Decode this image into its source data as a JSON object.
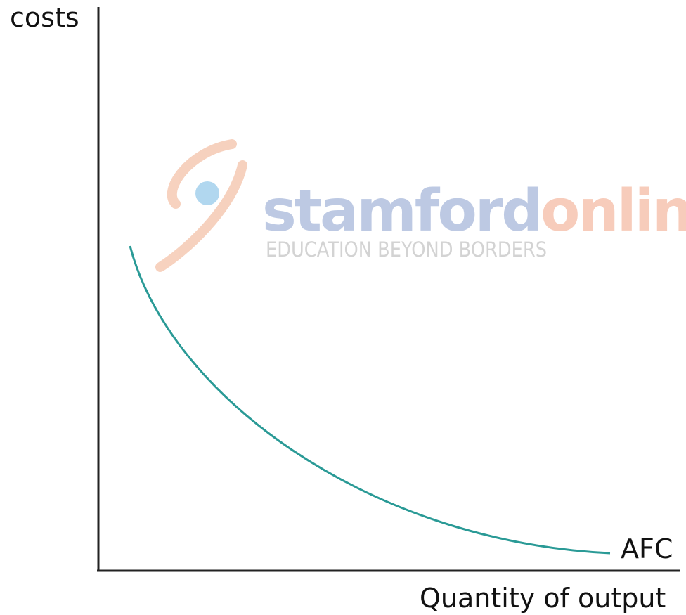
{
  "y_axis_label": "costs",
  "x_axis_label": "Quantity of output",
  "curve_label": "AFC",
  "watermark": {
    "brand_part_1": "stamford",
    "brand_part_2": "online",
    "tagline": "EDUCATION BEYOND BORDERS"
  }
}
